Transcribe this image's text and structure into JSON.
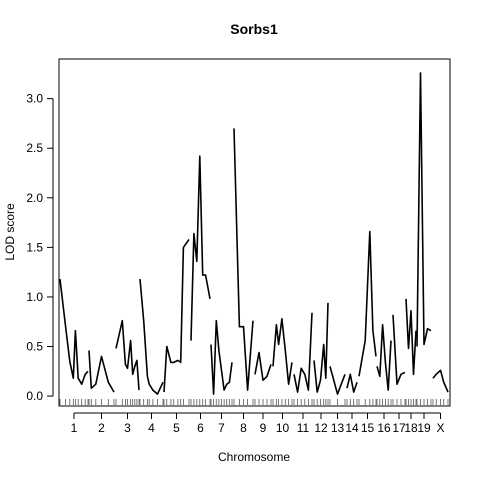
{
  "chart_data": {
    "type": "line",
    "title": "Sorbs1",
    "xlabel": "Chromosome",
    "ylabel": "LOD score",
    "ylim": [
      -0.1,
      3.4
    ],
    "yticks": [
      0.0,
      0.5,
      1.0,
      1.5,
      2.0,
      2.5,
      3.0
    ],
    "ytick_labels": [
      "0.0",
      "0.5",
      "1.0",
      "1.5",
      "2.0",
      "2.5",
      "3.0"
    ],
    "grid": false,
    "legend": "none",
    "line_color": "#000000",
    "chromosomes": [
      {
        "label": "1",
        "x": [
          0,
          8,
          14,
          19,
          22,
          26,
          31,
          36,
          40
        ],
        "lod": [
          1.18,
          0.7,
          0.35,
          0.18,
          0.66,
          0.18,
          0.12,
          0.22,
          0.25
        ]
      },
      {
        "label": "2",
        "x": [
          0,
          2,
          6,
          11,
          17,
          22
        ],
        "lod": [
          0.46,
          0.08,
          0.12,
          0.4,
          0.14,
          0.04
        ]
      },
      {
        "label": "3",
        "x": [
          0,
          6,
          9,
          11,
          14,
          16,
          18,
          20,
          22
        ],
        "lod": [
          0.48,
          0.76,
          0.32,
          0.28,
          0.56,
          0.22,
          0.3,
          0.36,
          0.06
        ]
      },
      {
        "label": "4",
        "x": [
          0,
          4,
          8,
          10,
          14,
          19,
          25
        ],
        "lod": [
          1.18,
          0.76,
          0.2,
          0.12,
          0.06,
          0.02,
          0.14
        ]
      },
      {
        "label": "5",
        "x": [
          0,
          2,
          5,
          7,
          10,
          12,
          14,
          18
        ],
        "lod": [
          0.04,
          0.5,
          0.34,
          0.34,
          0.36,
          0.34,
          1.5,
          1.58
        ]
      },
      {
        "label": "6",
        "x": [
          0,
          2,
          4,
          6,
          8,
          10,
          13
        ],
        "lod": [
          0.56,
          1.64,
          1.36,
          2.42,
          1.22,
          1.22,
          0.98
        ]
      },
      {
        "label": "7",
        "x": [
          0,
          2,
          4,
          6,
          8,
          10,
          12,
          14,
          16
        ],
        "lod": [
          0.52,
          0.02,
          0.76,
          0.46,
          0.26,
          0.06,
          0.12,
          0.14,
          0.34
        ]
      },
      {
        "label": "8",
        "x": [
          0,
          4,
          7,
          10,
          14
        ],
        "lod": [
          2.7,
          0.7,
          0.7,
          0.06,
          0.76
        ]
      },
      {
        "label": "9",
        "x": [
          0,
          3,
          6,
          9,
          12
        ],
        "lod": [
          0.22,
          0.44,
          0.16,
          0.2,
          0.32
        ]
      },
      {
        "label": "10",
        "x": [
          0,
          3,
          5,
          8,
          11,
          14,
          17
        ],
        "lod": [
          0.3,
          0.72,
          0.52,
          0.78,
          0.46,
          0.12,
          0.34
        ]
      },
      {
        "label": "11",
        "x": [
          0,
          2,
          4,
          6,
          8,
          10
        ],
        "lod": [
          0.22,
          0.04,
          0.28,
          0.22,
          0.06,
          0.84
        ]
      },
      {
        "label": "12",
        "x": [
          0,
          3,
          6,
          9,
          11,
          13
        ],
        "lod": [
          0.36,
          0.04,
          0.16,
          0.52,
          0.18,
          0.94
        ]
      },
      {
        "label": "13",
        "x": [
          0,
          3,
          6
        ],
        "lod": [
          0.3,
          0.02,
          0.22
        ]
      },
      {
        "label": "14",
        "x": [
          0,
          3,
          6,
          9
        ],
        "lod": [
          0.08,
          0.22,
          0.04,
          0.14
        ]
      },
      {
        "label": "15",
        "x": [
          0,
          4,
          7,
          9,
          11
        ],
        "lod": [
          0.2,
          0.56,
          1.66,
          0.66,
          0.4
        ]
      },
      {
        "label": "16",
        "x": [
          0,
          2,
          4,
          6,
          8,
          10
        ],
        "lod": [
          0.3,
          0.2,
          0.72,
          0.34,
          0.06,
          0.56
        ]
      },
      {
        "label": "17",
        "x": [
          0,
          2,
          4,
          6
        ],
        "lod": [
          0.82,
          0.12,
          0.22,
          0.24
        ]
      },
      {
        "label": "18",
        "x": [
          0,
          2,
          4,
          6,
          8
        ],
        "lod": [
          0.98,
          0.48,
          0.86,
          0.22,
          0.66
        ]
      },
      {
        "label": "19",
        "x": [
          0,
          2,
          4,
          6,
          8
        ],
        "lod": [
          0.5,
          3.26,
          0.52,
          0.68,
          0.66
        ]
      },
      {
        "label": "X",
        "x": [
          0,
          3,
          7,
          10,
          14
        ],
        "lod": [
          0.18,
          0.22,
          0.26,
          0.14,
          0.04
        ]
      }
    ]
  }
}
